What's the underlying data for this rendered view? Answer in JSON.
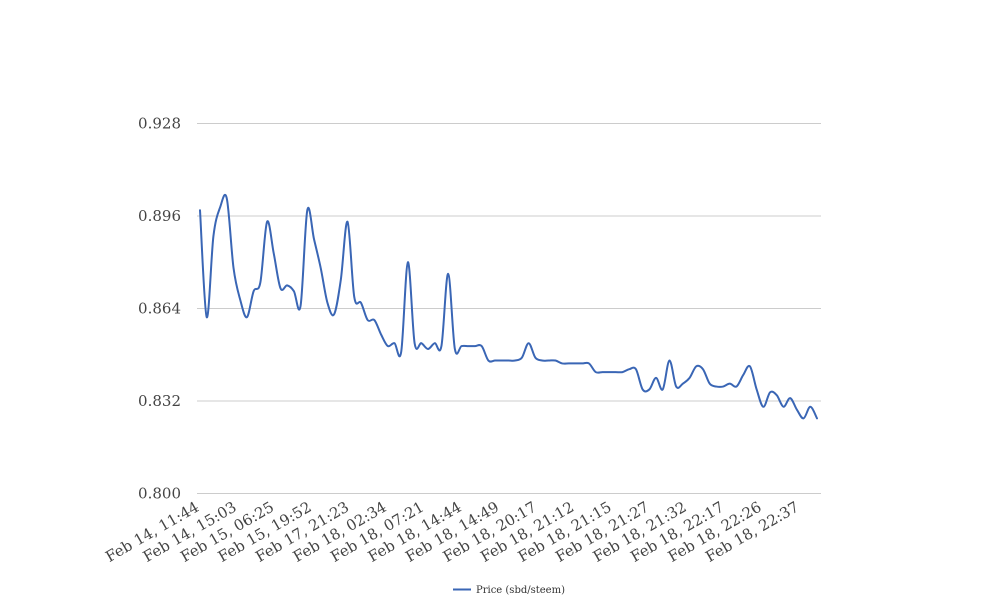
{
  "chart_data": {
    "type": "line",
    "title": "",
    "xlabel": "",
    "ylabel": "",
    "ylim": [
      0.8,
      0.928
    ],
    "yticks": [
      "0.800",
      "0.832",
      "0.864",
      "0.896",
      "0.928"
    ],
    "grid": true,
    "legend_position": "bottom",
    "xtick_labels": [
      "Feb 14, 11:44",
      "Feb 14, 15:03",
      "Feb 15, 06:25",
      "Feb 15, 19:52",
      "Feb 17, 21:23",
      "Feb 18, 02:34",
      "Feb 18, 07:21",
      "Feb 18, 14:44",
      "Feb 18, 14:49",
      "Feb 18, 20:17",
      "Feb 18, 21:12",
      "Feb 18, 21:15",
      "Feb 18, 21:27",
      "Feb 18, 21:32",
      "Feb 18, 22:17",
      "Feb 18, 22:26",
      "Feb 18, 22:37"
    ],
    "series": [
      {
        "name": "Price (sbd/steem)",
        "color": "#3a66b5",
        "values": [
          0.898,
          0.861,
          0.889,
          0.899,
          0.902,
          0.878,
          0.867,
          0.861,
          0.87,
          0.873,
          0.894,
          0.883,
          0.871,
          0.872,
          0.87,
          0.865,
          0.898,
          0.888,
          0.878,
          0.866,
          0.862,
          0.874,
          0.894,
          0.868,
          0.866,
          0.86,
          0.86,
          0.855,
          0.851,
          0.852,
          0.849,
          0.88,
          0.852,
          0.852,
          0.85,
          0.852,
          0.851,
          0.876,
          0.85,
          0.851,
          0.851,
          0.851,
          0.851,
          0.846,
          0.846,
          0.846,
          0.846,
          0.846,
          0.847,
          0.852,
          0.847,
          0.846,
          0.846,
          0.846,
          0.845,
          0.845,
          0.845,
          0.845,
          0.845,
          0.842,
          0.842,
          0.842,
          0.842,
          0.842,
          0.843,
          0.843,
          0.836,
          0.836,
          0.84,
          0.836,
          0.846,
          0.837,
          0.838,
          0.84,
          0.844,
          0.843,
          0.838,
          0.837,
          0.837,
          0.838,
          0.837,
          0.841,
          0.844,
          0.836,
          0.83,
          0.835,
          0.834,
          0.83,
          0.833,
          0.829,
          0.826,
          0.83,
          0.826
        ]
      }
    ]
  }
}
